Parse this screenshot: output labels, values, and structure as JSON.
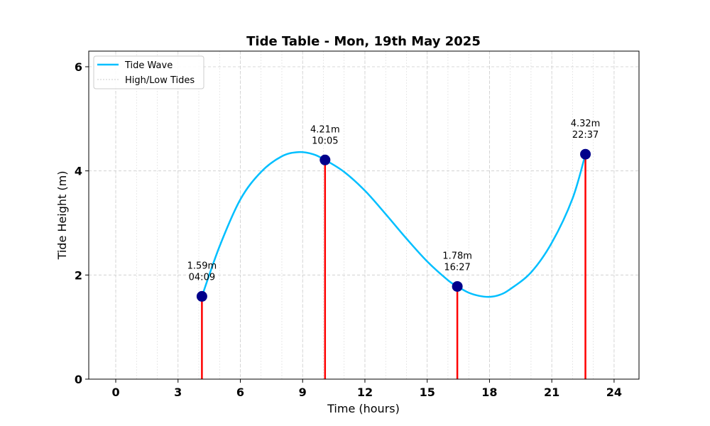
{
  "chart_data": {
    "type": "line",
    "title": "Tide Table - Mon, 19th May 2025",
    "xlabel": "Time (hours)",
    "ylabel": "Tide Height (m)",
    "xlim": [
      -1.3,
      25.2
    ],
    "ylim": [
      0,
      6.3
    ],
    "xticks": [
      0,
      3,
      6,
      9,
      12,
      15,
      18,
      21,
      24
    ],
    "yticks": [
      0,
      2,
      4,
      6
    ],
    "grid": true,
    "legend_position": "top-left",
    "series": [
      {
        "name": "Tide Wave",
        "color": "#00bfff",
        "x": [
          4.15,
          5,
          6,
          7,
          8,
          8.8,
          9.5,
          10.08,
          11,
          12,
          13,
          14,
          15,
          16,
          16.45,
          17,
          17.5,
          18,
          18.5,
          19,
          20,
          21,
          22,
          22.62
        ],
        "y": [
          1.59,
          2.55,
          3.45,
          3.98,
          4.28,
          4.36,
          4.32,
          4.21,
          3.98,
          3.62,
          3.17,
          2.7,
          2.26,
          1.9,
          1.78,
          1.66,
          1.6,
          1.58,
          1.62,
          1.73,
          2.05,
          2.62,
          3.47,
          4.32
        ]
      },
      {
        "name": "High/Low Tides",
        "color": "#ff0000",
        "marker_color": "#00008b",
        "points": [
          {
            "x": 4.15,
            "y": 1.59,
            "height_label": "1.59m",
            "time_label": "04:09"
          },
          {
            "x": 10.08,
            "y": 4.21,
            "height_label": "4.21m",
            "time_label": "10:05"
          },
          {
            "x": 16.45,
            "y": 1.78,
            "height_label": "1.78m",
            "time_label": "16:27"
          },
          {
            "x": 22.62,
            "y": 4.32,
            "height_label": "4.32m",
            "time_label": "22:37"
          }
        ]
      }
    ]
  }
}
